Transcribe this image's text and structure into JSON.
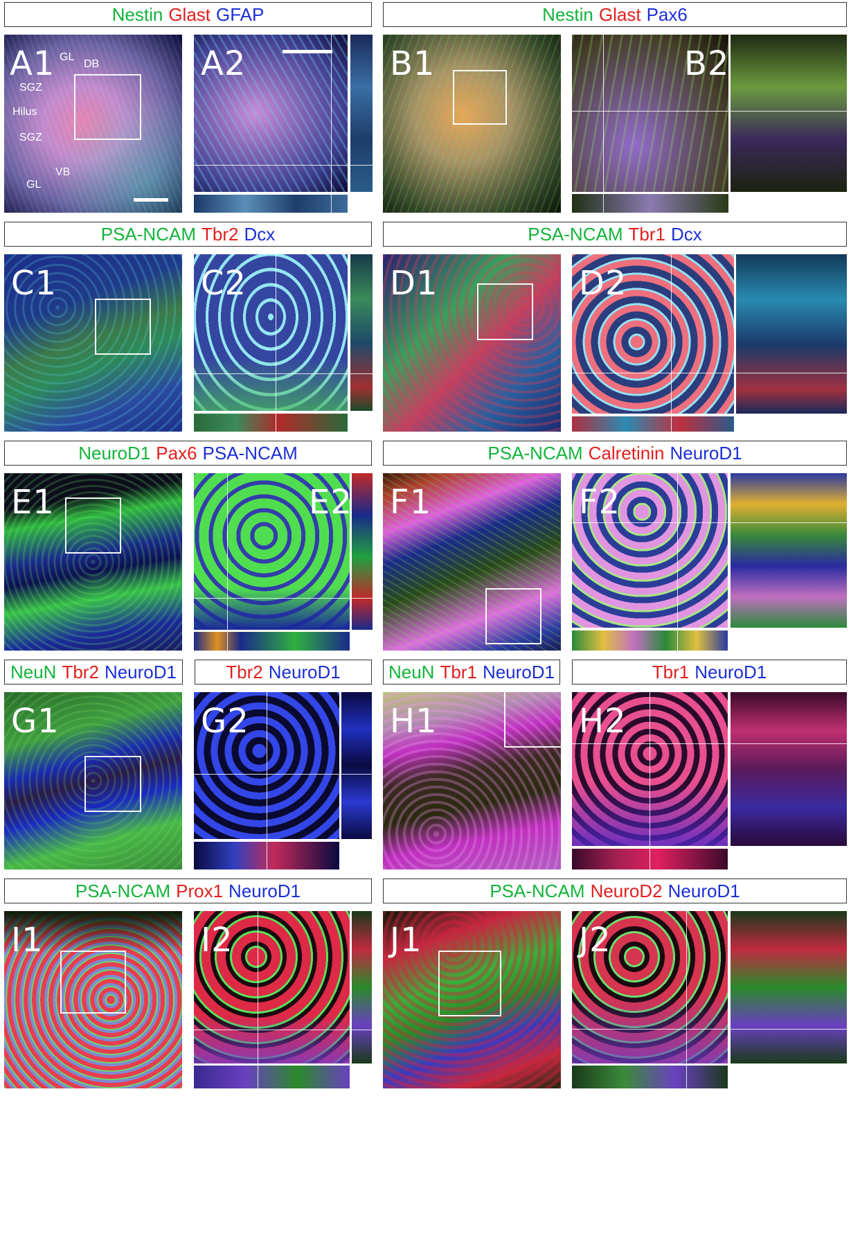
{
  "headers": {
    "A": [
      {
        "t": "Nestin",
        "c": "g"
      },
      {
        "t": "Glast",
        "c": "r"
      },
      {
        "t": "GFAP",
        "c": "b"
      }
    ],
    "B": [
      {
        "t": "Nestin",
        "c": "g"
      },
      {
        "t": "Glast",
        "c": "r"
      },
      {
        "t": "Pax6",
        "c": "b"
      }
    ],
    "C": [
      {
        "t": "PSA-NCAM",
        "c": "g"
      },
      {
        "t": "Tbr2",
        "c": "r"
      },
      {
        "t": "Dcx",
        "c": "b"
      }
    ],
    "D": [
      {
        "t": "PSA-NCAM",
        "c": "g"
      },
      {
        "t": "Tbr1",
        "c": "r"
      },
      {
        "t": "Dcx",
        "c": "b"
      }
    ],
    "E": [
      {
        "t": "NeuroD1",
        "c": "g"
      },
      {
        "t": "Pax6",
        "c": "r"
      },
      {
        "t": "PSA-NCAM",
        "c": "b"
      }
    ],
    "F": [
      {
        "t": "PSA-NCAM",
        "c": "g"
      },
      {
        "t": "Calretinin",
        "c": "r"
      },
      {
        "t": "NeuroD1",
        "c": "b"
      }
    ],
    "G1": [
      {
        "t": "NeuN",
        "c": "g"
      },
      {
        "t": "Tbr2",
        "c": "r"
      },
      {
        "t": "NeuroD1",
        "c": "b"
      }
    ],
    "G2": [
      {
        "t": "Tbr2",
        "c": "r"
      },
      {
        "t": "NeuroD1",
        "c": "b"
      }
    ],
    "H1": [
      {
        "t": "NeuN",
        "c": "g"
      },
      {
        "t": "Tbr1",
        "c": "r"
      },
      {
        "t": "NeuroD1",
        "c": "b"
      }
    ],
    "H2": [
      {
        "t": "Tbr1",
        "c": "r"
      },
      {
        "t": "NeuroD1",
        "c": "b"
      }
    ],
    "I": [
      {
        "t": "PSA-NCAM",
        "c": "g"
      },
      {
        "t": "Prox1",
        "c": "r"
      },
      {
        "t": "NeuroD1",
        "c": "b"
      }
    ],
    "J": [
      {
        "t": "PSA-NCAM",
        "c": "g"
      },
      {
        "t": "NeuroD2",
        "c": "r"
      },
      {
        "t": "NeuroD1",
        "c": "b"
      }
    ]
  },
  "panels": {
    "A1": "A1",
    "A2": "A2",
    "B1": "B1",
    "B2": "B2",
    "C1": "C1",
    "C2": "C2",
    "D1": "D1",
    "D2": "D2",
    "E1": "E1",
    "E2": "E2",
    "F1": "F1",
    "F2": "F2",
    "G1": "G1",
    "G2": "G2",
    "H1": "H1",
    "H2": "H2",
    "I1": "I1",
    "I2": "I2",
    "J1": "J1",
    "J2": "J2"
  },
  "regions": {
    "gl_top": "GL",
    "db": "DB",
    "sgz_top": "SGZ",
    "hilus": "Hilus",
    "sgz_bottom": "SGZ",
    "vb": "VB",
    "gl_bottom": "GL"
  },
  "colors": {
    "green": "#12b43a",
    "red": "#e0201e",
    "blue": "#1b2fd6"
  }
}
